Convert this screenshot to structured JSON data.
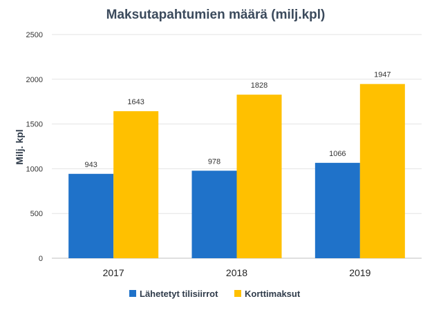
{
  "chart_data": {
    "type": "bar",
    "title": "Maksutapahtumien määrä (milj.kpl)",
    "xlabel": "",
    "ylabel": "Milj. kpl",
    "ylim": [
      0,
      2500
    ],
    "yticks": [
      0,
      500,
      1000,
      1500,
      2000,
      2500
    ],
    "categories": [
      "2017",
      "2018",
      "2019"
    ],
    "series": [
      {
        "name": "Lähetetyt tilisiirrot",
        "values": [
          943,
          978,
          1066
        ],
        "color": "#1f72c9"
      },
      {
        "name": "Korttimaksut",
        "values": [
          1643,
          1828,
          1947
        ],
        "color": "#ffc000"
      }
    ],
    "grid": true,
    "legend": "bottom"
  }
}
